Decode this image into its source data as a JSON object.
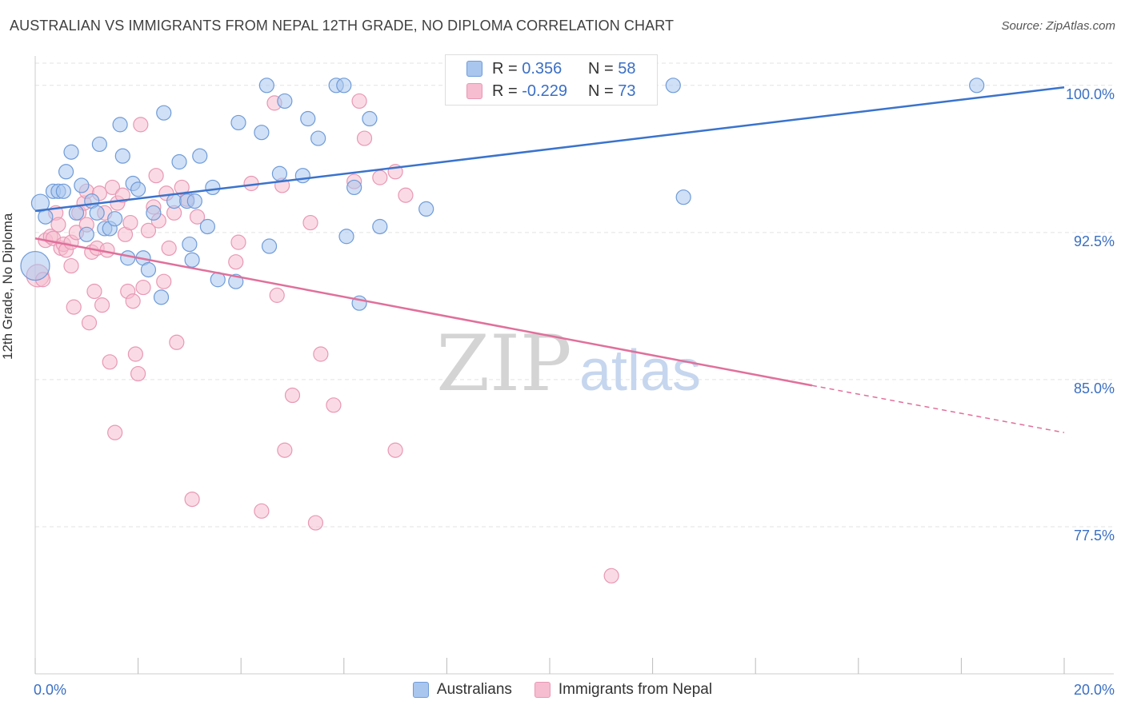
{
  "title": "AUSTRALIAN VS IMMIGRANTS FROM NEPAL 12TH GRADE, NO DIPLOMA CORRELATION CHART",
  "source": "Source: ZipAtlas.com",
  "watermark": {
    "zip": "ZIP",
    "atlas": "atlas"
  },
  "colors": {
    "blue_fill": "#a9c6ef",
    "blue_stroke": "#6f9bd8",
    "blue_line": "#3a73cc",
    "pink_fill": "#f6bdd0",
    "pink_stroke": "#e898b4",
    "pink_line": "#e0709a",
    "grid": "#e3e3e3",
    "axis_text": "#3a6fc4"
  },
  "legend_top": {
    "rows": [
      {
        "r_label": "R = ",
        "r_value": "0.356",
        "n_label": "N = ",
        "n_value": "58"
      },
      {
        "r_label": "R = ",
        "r_value": "-0.229",
        "n_label": "N = ",
        "n_value": "73"
      }
    ]
  },
  "legend_bottom": {
    "items": [
      "Australians",
      "Immigrants from Nepal"
    ]
  },
  "chart_data": {
    "type": "scatter",
    "title": "AUSTRALIAN VS IMMIGRANTS FROM NEPAL 12TH GRADE, NO DIPLOMA CORRELATION CHART",
    "xlabel": "",
    "ylabel": "12th Grade, No Diploma",
    "xlim": [
      0,
      20
    ],
    "ylim": [
      70,
      101.5
    ],
    "x_tick_labels": [
      "0.0%",
      "20.0%"
    ],
    "y_ticks": [
      77.5,
      85.0,
      92.5,
      100.0
    ],
    "y_tick_labels": [
      "77.5%",
      "85.0%",
      "92.5%",
      "100.0%"
    ],
    "x_minor_ticks": [
      0,
      2,
      4,
      6,
      8,
      10,
      12,
      14,
      16,
      18,
      20
    ],
    "grid": true,
    "series": [
      {
        "name": "Australians",
        "r": 0.356,
        "n": 58,
        "trend": {
          "x0": 0,
          "y0": 93.6,
          "x1": 20,
          "y1": 99.9
        },
        "points": [
          [
            0.1,
            94.0
          ],
          [
            0.2,
            93.3
          ],
          [
            0.35,
            94.6
          ],
          [
            0.45,
            94.6
          ],
          [
            0.55,
            94.6
          ],
          [
            0.6,
            95.6
          ],
          [
            0.7,
            96.6
          ],
          [
            0.8,
            93.5
          ],
          [
            0.9,
            94.9
          ],
          [
            1.0,
            92.4
          ],
          [
            1.1,
            94.1
          ],
          [
            1.2,
            93.5
          ],
          [
            1.25,
            97.0
          ],
          [
            1.35,
            92.7
          ],
          [
            1.45,
            92.7
          ],
          [
            1.55,
            93.2
          ],
          [
            1.65,
            98.0
          ],
          [
            1.7,
            96.4
          ],
          [
            1.8,
            91.2
          ],
          [
            1.9,
            95.0
          ],
          [
            2.0,
            94.7
          ],
          [
            2.1,
            91.2
          ],
          [
            2.2,
            90.6
          ],
          [
            2.3,
            93.5
          ],
          [
            2.45,
            89.2
          ],
          [
            2.5,
            98.6
          ],
          [
            2.7,
            94.1
          ],
          [
            2.8,
            96.1
          ],
          [
            2.95,
            94.1
          ],
          [
            3.0,
            91.9
          ],
          [
            3.05,
            91.1
          ],
          [
            3.1,
            94.1
          ],
          [
            3.2,
            96.4
          ],
          [
            3.35,
            92.8
          ],
          [
            3.45,
            94.8
          ],
          [
            3.55,
            90.1
          ],
          [
            3.9,
            90.0
          ],
          [
            3.95,
            98.1
          ],
          [
            4.4,
            97.6
          ],
          [
            4.5,
            100.0
          ],
          [
            4.55,
            91.8
          ],
          [
            4.75,
            95.5
          ],
          [
            4.85,
            99.2
          ],
          [
            5.2,
            95.4
          ],
          [
            5.3,
            98.3
          ],
          [
            5.5,
            97.3
          ],
          [
            5.85,
            100.0
          ],
          [
            6.0,
            100.0
          ],
          [
            6.05,
            92.3
          ],
          [
            6.2,
            94.8
          ],
          [
            6.3,
            88.9
          ],
          [
            6.5,
            98.3
          ],
          [
            6.7,
            92.8
          ],
          [
            7.6,
            93.7
          ],
          [
            12.4,
            100.0
          ],
          [
            12.6,
            94.3
          ],
          [
            18.3,
            100.0
          ],
          [
            0.0,
            90.8
          ]
        ],
        "sizes": [
          11,
          9,
          9,
          9,
          9,
          9,
          9,
          9,
          9,
          9,
          9,
          9,
          9,
          9,
          9,
          9,
          9,
          9,
          9,
          9,
          9,
          9,
          9,
          9,
          9,
          9,
          9,
          9,
          9,
          9,
          9,
          9,
          9,
          9,
          9,
          9,
          9,
          9,
          9,
          9,
          9,
          9,
          9,
          9,
          9,
          9,
          9,
          9,
          9,
          9,
          9,
          9,
          9,
          9,
          9,
          9,
          9,
          18
        ]
      },
      {
        "name": "Immigrants from Nepal",
        "r": -0.229,
        "n": 73,
        "trend": {
          "x0": 0,
          "y0": 92.2,
          "x1": 15.1,
          "y1": 84.7,
          "dash_x1": 20,
          "dash_y1": 82.3
        },
        "points": [
          [
            0.05,
            90.3
          ],
          [
            0.15,
            90.1
          ],
          [
            0.2,
            92.1
          ],
          [
            0.3,
            92.3
          ],
          [
            0.35,
            92.2
          ],
          [
            0.4,
            93.5
          ],
          [
            0.45,
            92.9
          ],
          [
            0.5,
            91.7
          ],
          [
            0.55,
            91.9
          ],
          [
            0.6,
            91.6
          ],
          [
            0.7,
            92.0
          ],
          [
            0.7,
            90.8
          ],
          [
            0.75,
            88.7
          ],
          [
            0.8,
            92.5
          ],
          [
            0.85,
            93.5
          ],
          [
            0.95,
            94.0
          ],
          [
            1.0,
            94.6
          ],
          [
            1.0,
            92.9
          ],
          [
            1.05,
            87.9
          ],
          [
            1.1,
            91.5
          ],
          [
            1.15,
            89.5
          ],
          [
            1.2,
            91.7
          ],
          [
            1.25,
            94.5
          ],
          [
            1.3,
            88.8
          ],
          [
            1.35,
            93.5
          ],
          [
            1.4,
            91.6
          ],
          [
            1.45,
            85.9
          ],
          [
            1.5,
            94.8
          ],
          [
            1.55,
            82.3
          ],
          [
            1.6,
            94.0
          ],
          [
            1.7,
            94.4
          ],
          [
            1.75,
            92.4
          ],
          [
            1.8,
            89.5
          ],
          [
            1.85,
            93.0
          ],
          [
            1.9,
            89.0
          ],
          [
            1.95,
            86.3
          ],
          [
            2.0,
            85.3
          ],
          [
            2.05,
            98.0
          ],
          [
            2.1,
            89.7
          ],
          [
            2.2,
            92.6
          ],
          [
            2.3,
            93.8
          ],
          [
            2.35,
            95.4
          ],
          [
            2.4,
            93.1
          ],
          [
            2.5,
            90.0
          ],
          [
            2.55,
            94.5
          ],
          [
            2.6,
            91.7
          ],
          [
            2.7,
            93.5
          ],
          [
            2.75,
            86.9
          ],
          [
            2.85,
            94.8
          ],
          [
            2.95,
            94.2
          ],
          [
            3.05,
            78.9
          ],
          [
            3.15,
            93.3
          ],
          [
            3.9,
            91.0
          ],
          [
            3.95,
            92.0
          ],
          [
            4.2,
            95.0
          ],
          [
            4.4,
            78.3
          ],
          [
            4.65,
            99.1
          ],
          [
            4.7,
            89.3
          ],
          [
            4.8,
            94.9
          ],
          [
            4.85,
            81.4
          ],
          [
            5.0,
            84.2
          ],
          [
            5.35,
            93.0
          ],
          [
            5.45,
            77.7
          ],
          [
            5.55,
            86.3
          ],
          [
            5.8,
            83.7
          ],
          [
            6.2,
            95.1
          ],
          [
            6.3,
            99.2
          ],
          [
            6.4,
            97.3
          ],
          [
            6.7,
            95.3
          ],
          [
            7.0,
            95.6
          ],
          [
            7.0,
            81.4
          ],
          [
            7.2,
            94.4
          ],
          [
            11.2,
            75.0
          ]
        ],
        "sizes": [
          14,
          9,
          9,
          9,
          9,
          9,
          9,
          9,
          9,
          9,
          9,
          9,
          9,
          9,
          9,
          9,
          9,
          9,
          9,
          9,
          9,
          9,
          9,
          9,
          9,
          9,
          9,
          9,
          9,
          9,
          9,
          9,
          9,
          9,
          9,
          9,
          9,
          9,
          9,
          9,
          9,
          9,
          9,
          9,
          9,
          9,
          9,
          9,
          9,
          9,
          9,
          9,
          9,
          9,
          9,
          9,
          9,
          9,
          9,
          9,
          9,
          9,
          9,
          9,
          9,
          9,
          9,
          9,
          9,
          9,
          9,
          9,
          9
        ]
      }
    ]
  }
}
